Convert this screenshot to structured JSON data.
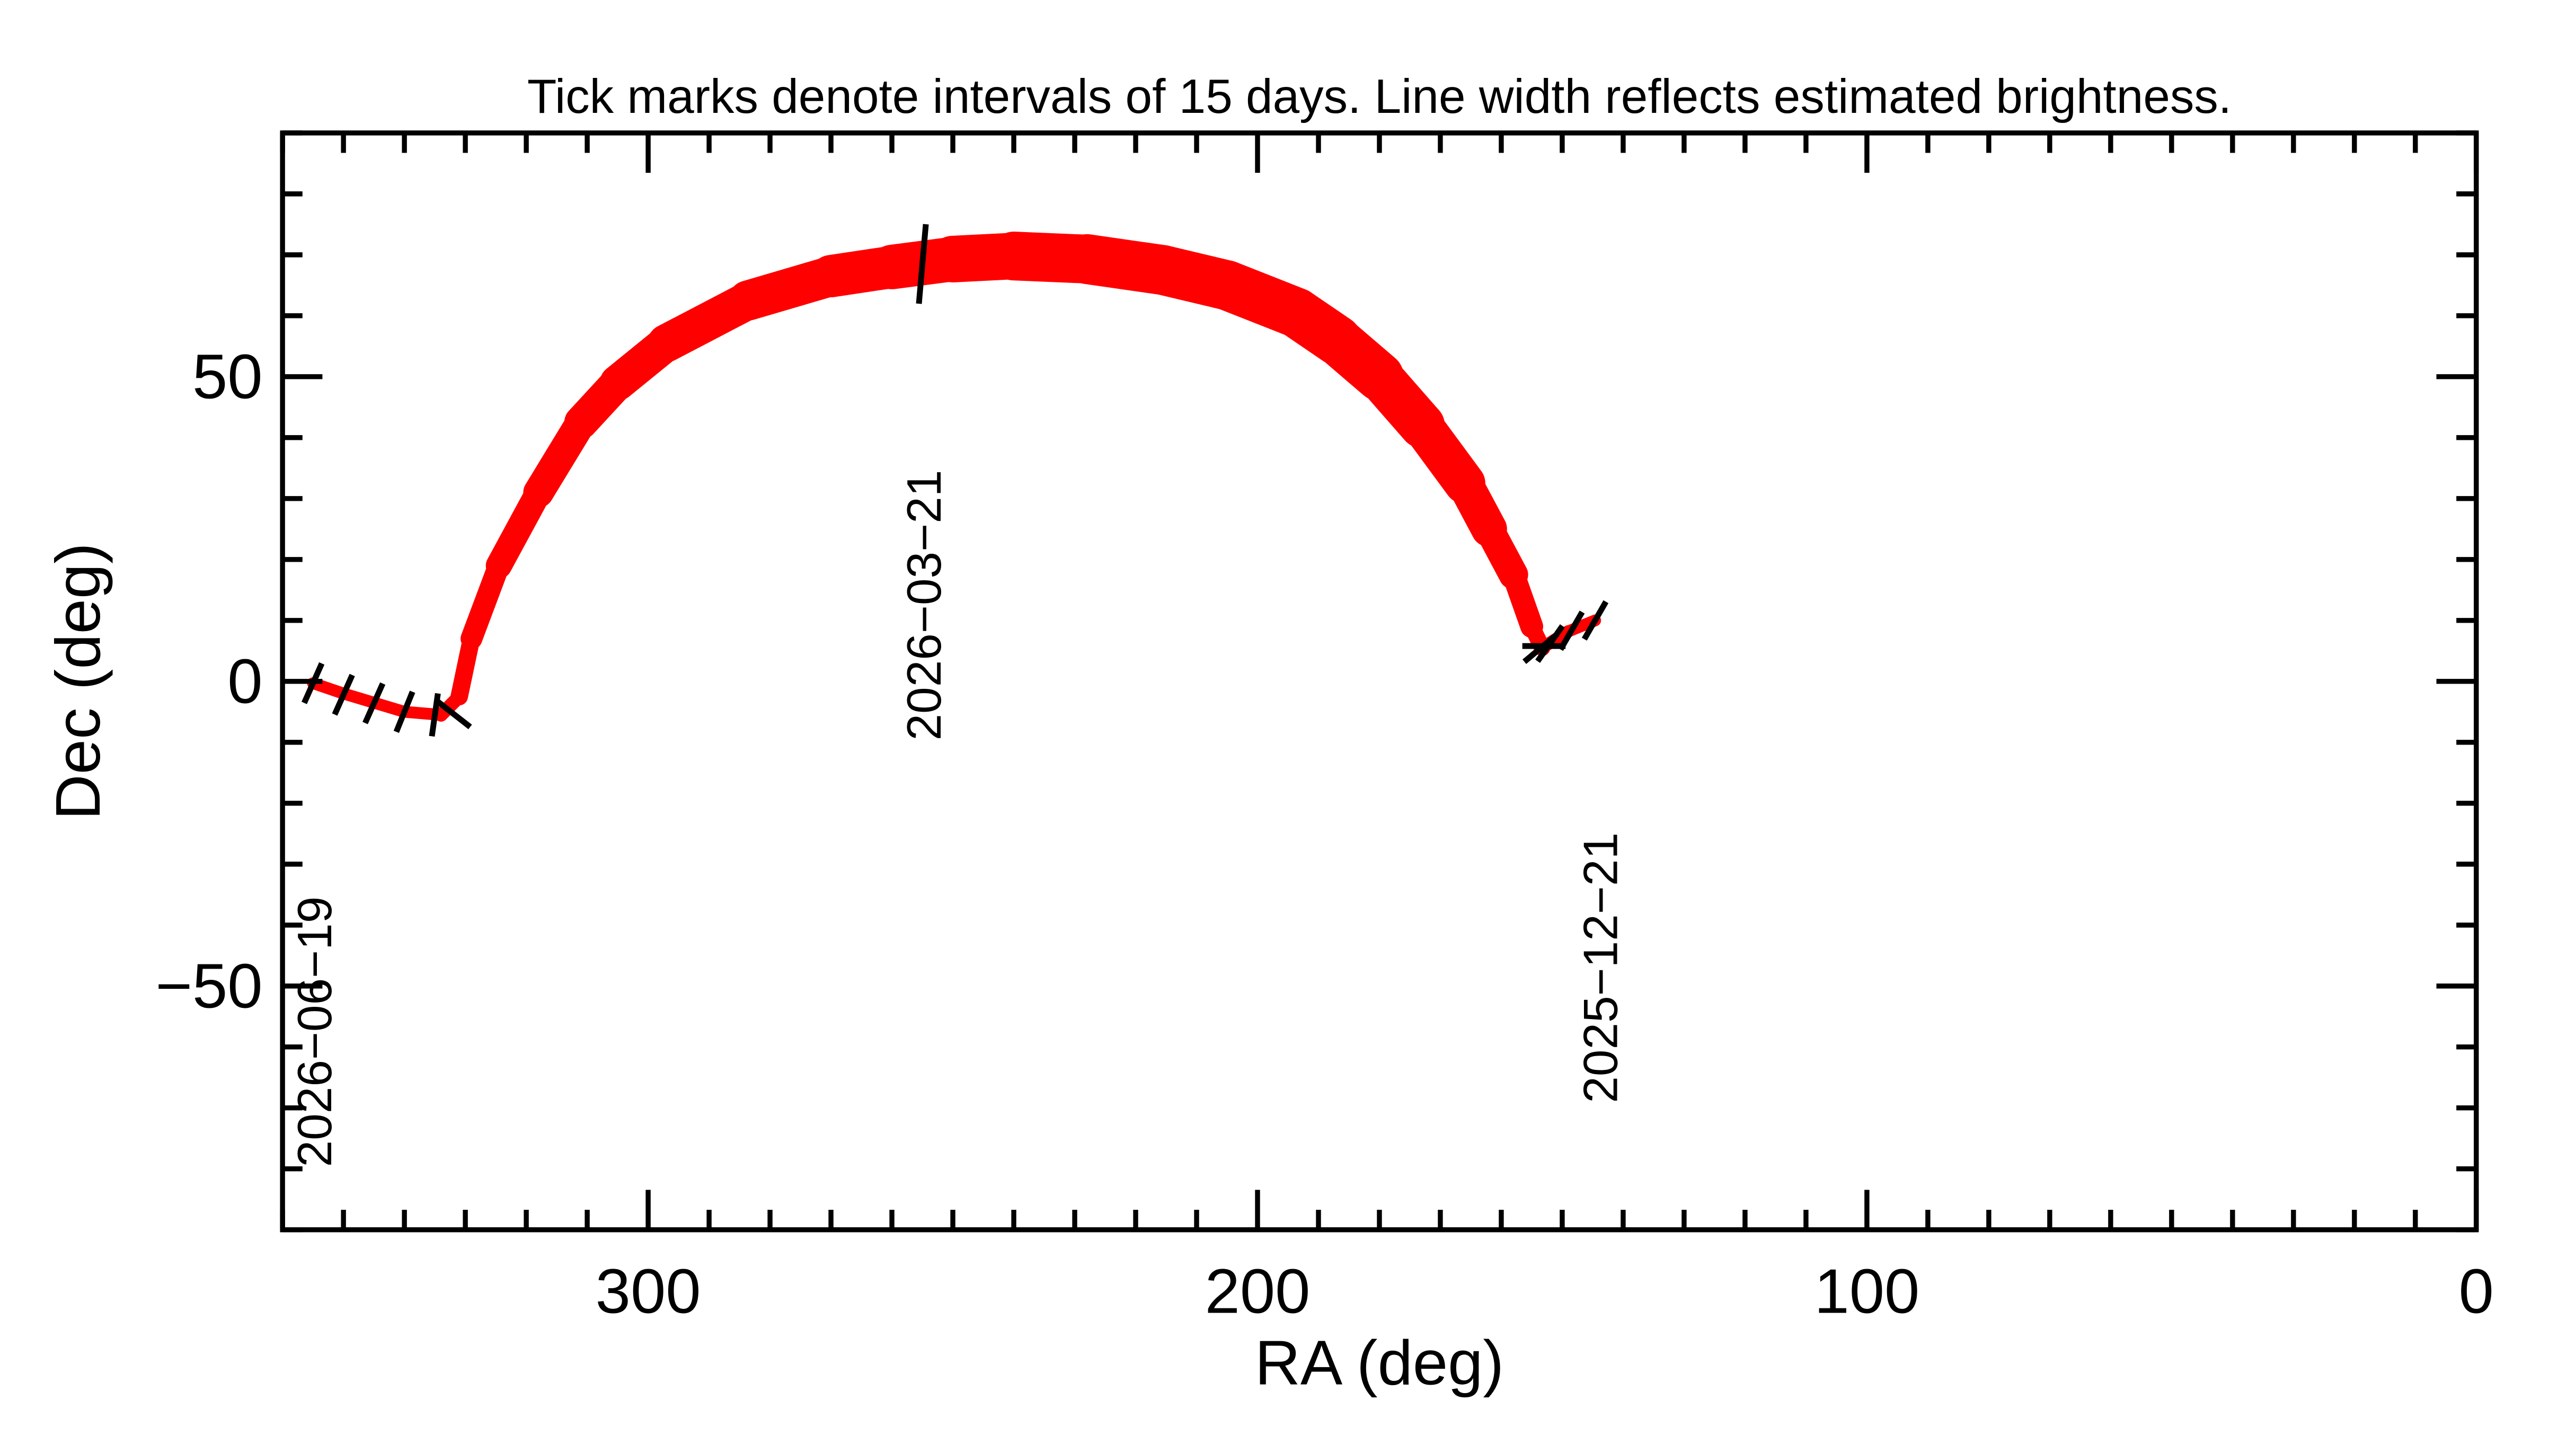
{
  "chart_data": {
    "type": "line",
    "title": "Tick marks denote intervals of 15 days.  Line width reflects estimated brightness.",
    "xlabel": "RA (deg)",
    "ylabel": "Dec (deg)",
    "xlim": [
      360,
      0
    ],
    "ylim": [
      -90,
      90
    ],
    "xticks": [
      300,
      200,
      100,
      0
    ],
    "xtick_labels": [
      "300",
      "200",
      "100",
      "0"
    ],
    "yticks": [
      50,
      0,
      -50
    ],
    "ytick_labels": [
      "50",
      "0",
      "−50"
    ],
    "x_minor_step": 10,
    "y_minor_step": 10,
    "line_color": "#ff0000",
    "track": [
      {
        "ra": 144.6,
        "dec": 10.0,
        "brightness": 0.12
      },
      {
        "ra": 149.0,
        "dec": 8.2,
        "brightness": 0.12
      },
      {
        "ra": 153.3,
        "dec": 5.5,
        "brightness": 0.15
      },
      {
        "ra": 155.0,
        "dec": 9.0,
        "brightness": 0.3
      },
      {
        "ra": 158.0,
        "dec": 17.5,
        "brightness": 0.45
      },
      {
        "ra": 162.0,
        "dec": 25.0,
        "brightness": 0.6
      },
      {
        "ra": 166.0,
        "dec": 32.5,
        "brightness": 0.75
      },
      {
        "ra": 173.0,
        "dec": 42.0,
        "brightness": 0.85
      },
      {
        "ra": 180.0,
        "dec": 50.0,
        "brightness": 0.95
      },
      {
        "ra": 187.0,
        "dec": 56.0,
        "brightness": 1.0
      },
      {
        "ra": 193.6,
        "dec": 60.5,
        "brightness": 1.0
      },
      {
        "ra": 205.0,
        "dec": 65.0,
        "brightness": 1.0
      },
      {
        "ra": 215.5,
        "dec": 67.5,
        "brightness": 1.0
      },
      {
        "ra": 228.0,
        "dec": 69.3,
        "brightness": 1.0
      },
      {
        "ra": 240.0,
        "dec": 69.8,
        "brightness": 0.95
      },
      {
        "ra": 250.0,
        "dec": 69.3,
        "brightness": 0.9
      },
      {
        "ra": 260.0,
        "dec": 68.0,
        "brightness": 0.85
      },
      {
        "ra": 270.0,
        "dec": 66.5,
        "brightness": 0.8
      },
      {
        "ra": 283.6,
        "dec": 62.5,
        "brightness": 0.75
      },
      {
        "ra": 297.0,
        "dec": 55.5,
        "brightness": 0.7
      },
      {
        "ra": 305.0,
        "dec": 49.0,
        "brightness": 0.65
      },
      {
        "ra": 311.0,
        "dec": 42.5,
        "brightness": 0.6
      },
      {
        "ra": 318.0,
        "dec": 31.0,
        "brightness": 0.5
      },
      {
        "ra": 324.5,
        "dec": 19.0,
        "brightness": 0.4
      },
      {
        "ra": 329.0,
        "dec": 7.0,
        "brightness": 0.3
      },
      {
        "ra": 331.0,
        "dec": -2.5,
        "brightness": 0.2
      },
      {
        "ra": 334.0,
        "dec": -5.5,
        "brightness": 0.12
      },
      {
        "ra": 340.0,
        "dec": -5.0,
        "brightness": 0.12
      },
      {
        "ra": 345.0,
        "dec": -3.5,
        "brightness": 0.12
      },
      {
        "ra": 350.0,
        "dec": -2.0,
        "brightness": 0.12
      },
      {
        "ra": 355.0,
        "dec": -0.3,
        "brightness": 0.12
      }
    ],
    "date_ticks": [
      {
        "ra": 144.6,
        "dec": 10.0,
        "angle": 60
      },
      {
        "ra": 148.5,
        "dec": 8.3,
        "angle": 60
      },
      {
        "ra": 152.0,
        "dec": 6.2,
        "angle": 55
      },
      {
        "ra": 153.5,
        "dec": 5.5,
        "angle": 40
      },
      {
        "ra": 153.0,
        "dec": 5.8,
        "angle": 0
      },
      {
        "ra": 255.0,
        "dec": 68.5,
        "angle": 85
      },
      {
        "ra": 332.0,
        "dec": -5.3,
        "angle": -38
      },
      {
        "ra": 335.0,
        "dec": -5.5,
        "angle": 82
      },
      {
        "ra": 340.0,
        "dec": -5.0,
        "angle": 68
      },
      {
        "ra": 345.0,
        "dec": -3.6,
        "angle": 66
      },
      {
        "ra": 350.0,
        "dec": -2.2,
        "angle": 66
      },
      {
        "ra": 355.0,
        "dec": -0.3,
        "angle": 66
      }
    ],
    "date_labels": [
      {
        "text": "2025−12−21",
        "ra": 141.0,
        "dec": -47.0
      },
      {
        "text": "2026−03−21",
        "ra": 252.0,
        "dec": 12.5
      },
      {
        "text": "2026−06−19",
        "ra": 352.0,
        "dec": -57.5
      }
    ]
  }
}
